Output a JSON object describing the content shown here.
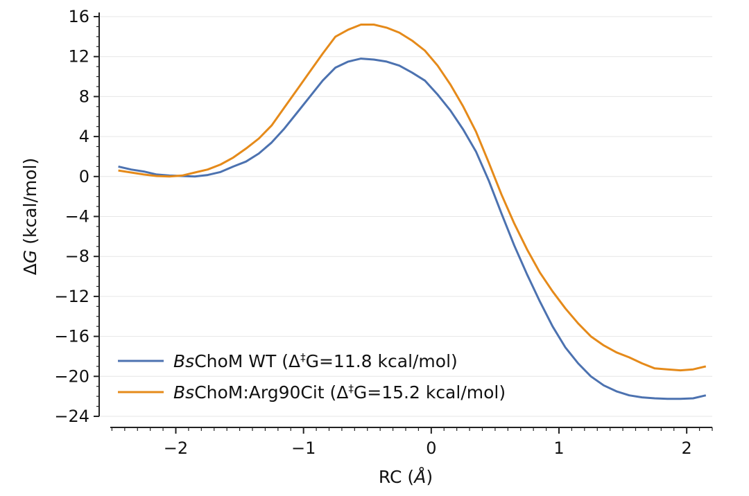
{
  "chart_data": {
    "type": "line",
    "xlabel": {
      "prefix": "RC (",
      "unit": "Å",
      "suffix": ")"
    },
    "ylabel": {
      "symbol_delta": "Δ",
      "symbol_g": "G",
      "unit": " (kcal/mol)"
    },
    "xlim": [
      -2.6,
      2.2
    ],
    "ylim": [
      -24,
      16
    ],
    "x_ticks": [
      -2,
      -1,
      0,
      1,
      2
    ],
    "x_tick_labels": [
      "−2",
      "−1",
      "0",
      "1",
      "2"
    ],
    "y_ticks": [
      16,
      12,
      8,
      4,
      0,
      -4,
      -8,
      -12,
      -16,
      -20,
      -24
    ],
    "y_tick_labels": [
      "16",
      "12",
      "8",
      "4",
      "0",
      "−4",
      "−8",
      "−12",
      "−16",
      "−20",
      "−24"
    ],
    "grid": "horizontal",
    "legend_position": "bottom-left",
    "series": [
      {
        "name": "BsChoM WT (Δ‡G=11.8 kcal/mol)",
        "legend": {
          "italic": "Bs",
          "rest": "ChoM WT (Δ",
          "sup": "‡",
          "tail": "G=11.8 kcal/mol)"
        },
        "color": "#4c72b0",
        "points": [
          [
            -2.45,
            1.0
          ],
          [
            -2.35,
            0.7
          ],
          [
            -2.25,
            0.5
          ],
          [
            -2.15,
            0.2
          ],
          [
            -2.05,
            0.1
          ],
          [
            -1.95,
            0.05
          ],
          [
            -1.85,
            0.0
          ],
          [
            -1.75,
            0.15
          ],
          [
            -1.65,
            0.45
          ],
          [
            -1.55,
            1.0
          ],
          [
            -1.45,
            1.5
          ],
          [
            -1.35,
            2.3
          ],
          [
            -1.25,
            3.4
          ],
          [
            -1.15,
            4.8
          ],
          [
            -1.05,
            6.4
          ],
          [
            -0.95,
            8.0
          ],
          [
            -0.85,
            9.6
          ],
          [
            -0.75,
            10.9
          ],
          [
            -0.65,
            11.5
          ],
          [
            -0.55,
            11.8
          ],
          [
            -0.45,
            11.7
          ],
          [
            -0.35,
            11.5
          ],
          [
            -0.25,
            11.1
          ],
          [
            -0.15,
            10.4
          ],
          [
            -0.05,
            9.6
          ],
          [
            0.05,
            8.2
          ],
          [
            0.15,
            6.6
          ],
          [
            0.25,
            4.7
          ],
          [
            0.35,
            2.5
          ],
          [
            0.45,
            -0.4
          ],
          [
            0.55,
            -3.7
          ],
          [
            0.65,
            -6.9
          ],
          [
            0.75,
            -9.8
          ],
          [
            0.85,
            -12.5
          ],
          [
            0.95,
            -15.0
          ],
          [
            1.05,
            -17.1
          ],
          [
            1.15,
            -18.7
          ],
          [
            1.25,
            -20.0
          ],
          [
            1.35,
            -20.9
          ],
          [
            1.45,
            -21.5
          ],
          [
            1.55,
            -21.9
          ],
          [
            1.65,
            -22.1
          ],
          [
            1.75,
            -22.2
          ],
          [
            1.85,
            -22.25
          ],
          [
            1.95,
            -22.25
          ],
          [
            2.05,
            -22.2
          ],
          [
            2.15,
            -21.9
          ]
        ]
      },
      {
        "name": "BsChoM:Arg90Cit (Δ‡G=15.2 kcal/mol)",
        "legend": {
          "italic": "Bs",
          "rest": "ChoM:Arg90Cit (Δ",
          "sup": "‡",
          "tail": "G=15.2 kcal/mol)"
        },
        "color": "#e58a1a",
        "points": [
          [
            -2.45,
            0.6
          ],
          [
            -2.35,
            0.4
          ],
          [
            -2.25,
            0.2
          ],
          [
            -2.15,
            0.05
          ],
          [
            -2.05,
            0.0
          ],
          [
            -1.95,
            0.1
          ],
          [
            -1.85,
            0.4
          ],
          [
            -1.75,
            0.7
          ],
          [
            -1.65,
            1.2
          ],
          [
            -1.55,
            1.9
          ],
          [
            -1.45,
            2.8
          ],
          [
            -1.35,
            3.8
          ],
          [
            -1.25,
            5.1
          ],
          [
            -1.15,
            6.9
          ],
          [
            -1.05,
            8.7
          ],
          [
            -0.95,
            10.5
          ],
          [
            -0.85,
            12.3
          ],
          [
            -0.75,
            14.0
          ],
          [
            -0.65,
            14.7
          ],
          [
            -0.55,
            15.2
          ],
          [
            -0.45,
            15.2
          ],
          [
            -0.35,
            14.9
          ],
          [
            -0.25,
            14.4
          ],
          [
            -0.15,
            13.6
          ],
          [
            -0.05,
            12.6
          ],
          [
            0.05,
            11.1
          ],
          [
            0.15,
            9.2
          ],
          [
            0.25,
            7.0
          ],
          [
            0.35,
            4.5
          ],
          [
            0.45,
            1.4
          ],
          [
            0.55,
            -1.8
          ],
          [
            0.65,
            -4.7
          ],
          [
            0.75,
            -7.3
          ],
          [
            0.85,
            -9.6
          ],
          [
            0.95,
            -11.5
          ],
          [
            1.05,
            -13.2
          ],
          [
            1.15,
            -14.7
          ],
          [
            1.25,
            -16.0
          ],
          [
            1.35,
            -16.9
          ],
          [
            1.45,
            -17.6
          ],
          [
            1.55,
            -18.1
          ],
          [
            1.65,
            -18.7
          ],
          [
            1.75,
            -19.2
          ],
          [
            1.85,
            -19.3
          ],
          [
            1.95,
            -19.4
          ],
          [
            2.05,
            -19.3
          ],
          [
            2.15,
            -19.0
          ]
        ]
      }
    ]
  }
}
